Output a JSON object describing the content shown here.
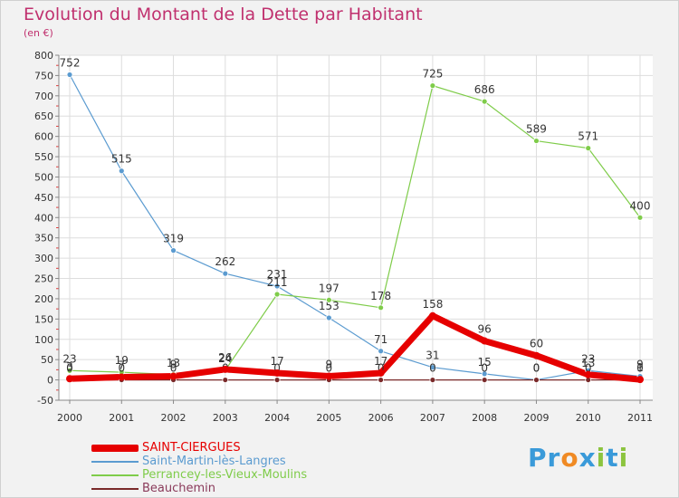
{
  "header": {
    "title": "Evolution du Montant de la Dette par Habitant",
    "subtitle": "(en €)"
  },
  "brand": {
    "logo_text": "Proxiti",
    "letters": [
      "P",
      "r",
      "o",
      "x",
      "i",
      "t",
      "i"
    ],
    "letter_colors": [
      "#3a9ad9",
      "#3a9ad9",
      "#f08a24",
      "#3a9ad9",
      "#8cc43f",
      "#3a9ad9",
      "#8cc43f"
    ]
  },
  "colors": {
    "background": "#f2f2f2",
    "plot_background": "#ffffff",
    "grid": "#dddddd",
    "axis": "#888888",
    "title": "#c0306e"
  },
  "chart_data": {
    "type": "line",
    "title": "Evolution du Montant de la Dette par Habitant",
    "subtitle": "(en €)",
    "xlabel": "",
    "ylabel": "",
    "categories": [
      "2000",
      "2001",
      "2002",
      "2003",
      "2004",
      "2005",
      "2006",
      "2007",
      "2008",
      "2009",
      "2010",
      "2011"
    ],
    "ylim": [
      -50,
      800
    ],
    "yticks": [
      -50,
      0,
      50,
      100,
      150,
      200,
      250,
      300,
      350,
      400,
      450,
      500,
      550,
      600,
      650,
      700,
      750,
      800
    ],
    "grid": true,
    "legend_position": "bottom-left",
    "series": [
      {
        "name": "Saint-Martin-lès-Langres",
        "color": "#5b9bd0",
        "values": [
          752,
          515,
          319,
          262,
          231,
          153,
          71,
          31,
          15,
          0,
          23,
          9
        ],
        "labels": [
          "752",
          "515",
          "319",
          "262",
          "231",
          "153",
          "71",
          "31",
          "15",
          "0",
          "23",
          "9"
        ]
      },
      {
        "name": "Perrancey-les-Vieux-Moulins",
        "color": "#7fcc4a",
        "values": [
          23,
          19,
          13,
          24,
          211,
          197,
          178,
          725,
          686,
          589,
          571,
          400
        ],
        "labels": [
          "23",
          "19",
          "13",
          "24",
          "211",
          "197",
          "178",
          "725",
          "686",
          "589",
          "571",
          "400"
        ]
      },
      {
        "name": "Beauchemin",
        "color": "#7a2a2a",
        "values": [
          0,
          0,
          0,
          0,
          0,
          0,
          0,
          0,
          0,
          0,
          0,
          0
        ],
        "labels": [
          "0",
          "0",
          "0",
          "0",
          "0",
          "0",
          "0",
          "0",
          "0",
          "0",
          "0",
          "0"
        ]
      },
      {
        "name": "SAINT-CIERGUES",
        "color": "#e60000",
        "thick": true,
        "values": [
          3,
          7,
          9,
          26,
          17,
          9,
          17,
          158,
          96,
          60,
          13,
          1
        ],
        "labels": [
          "3",
          "7",
          "9",
          "26",
          "17",
          "9",
          "17",
          "158",
          "96",
          "60",
          "13",
          "1"
        ]
      }
    ]
  },
  "legend": {
    "items": [
      {
        "label": "SAINT-CIERGUES",
        "color": "#e60000"
      },
      {
        "label": "Saint-Martin-lès-Langres",
        "color": "#5b9bd0"
      },
      {
        "label": "Perrancey-les-Vieux-Moulins",
        "color": "#7fcc4a"
      },
      {
        "label": "Beauchemin",
        "color": "#7a2a2a"
      }
    ]
  }
}
